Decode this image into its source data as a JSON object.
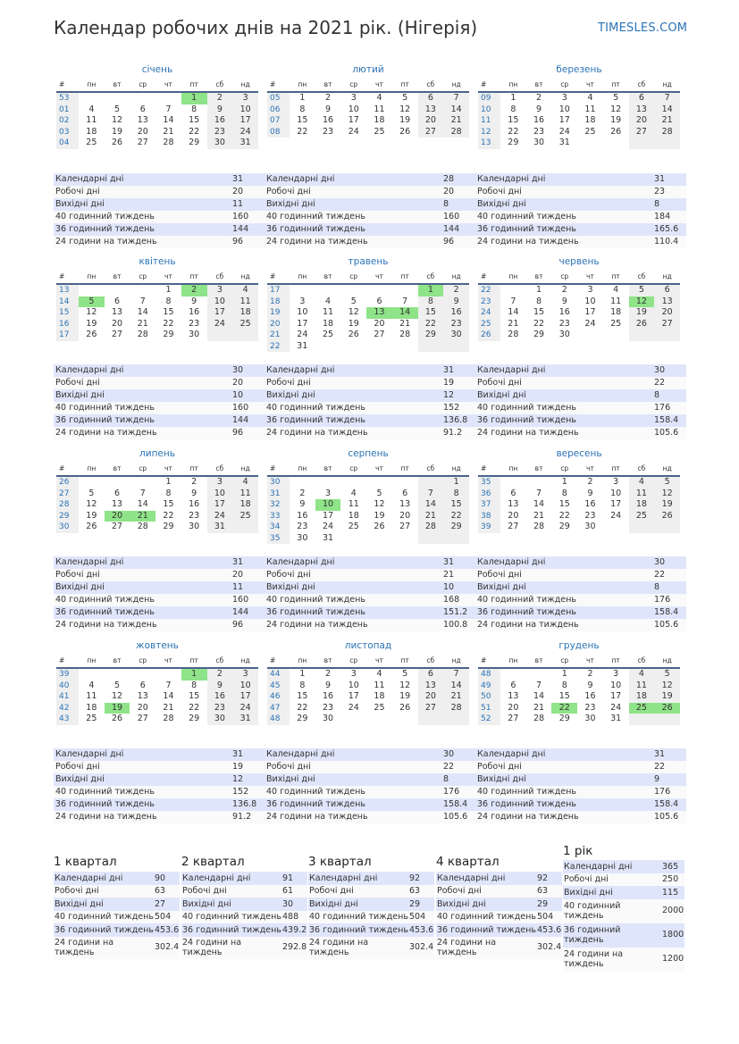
{
  "title": "Календар робочих днів на 2021 рік. (Нігерія)",
  "site": "TIMESLES.COM",
  "weekday_header": [
    "#",
    "пн",
    "вт",
    "ср",
    "чт",
    "пт",
    "сб",
    "нд"
  ],
  "stat_labels": [
    "Календарні дні",
    "Робочі дні",
    "Вихідні дні",
    "40 годинний тиждень",
    "36 годинний тиждень",
    "24 години на тиждень"
  ],
  "colors": {
    "accent": "#2b73b6",
    "holiday": "#8fe388",
    "weekend": "#efefef",
    "stripe": "#dfe6fb",
    "rule": "#4a6389"
  },
  "months": [
    {
      "name": "січень",
      "rows": [
        [
          "53",
          "",
          "",
          "",
          "",
          "1",
          "2",
          "3"
        ],
        [
          "01",
          "4",
          "5",
          "6",
          "7",
          "8",
          "9",
          "10"
        ],
        [
          "02",
          "11",
          "12",
          "13",
          "14",
          "15",
          "16",
          "17"
        ],
        [
          "03",
          "18",
          "19",
          "20",
          "21",
          "22",
          "23",
          "24"
        ],
        [
          "04",
          "25",
          "26",
          "27",
          "28",
          "29",
          "30",
          "31"
        ]
      ],
      "holidays": [
        "1"
      ],
      "stats": [
        "31",
        "20",
        "11",
        "160",
        "144",
        "96"
      ]
    },
    {
      "name": "лютий",
      "rows": [
        [
          "05",
          "1",
          "2",
          "3",
          "4",
          "5",
          "6",
          "7"
        ],
        [
          "06",
          "8",
          "9",
          "10",
          "11",
          "12",
          "13",
          "14"
        ],
        [
          "07",
          "15",
          "16",
          "17",
          "18",
          "19",
          "20",
          "21"
        ],
        [
          "08",
          "22",
          "23",
          "24",
          "25",
          "26",
          "27",
          "28"
        ]
      ],
      "holidays": [],
      "stats": [
        "28",
        "20",
        "8",
        "160",
        "144",
        "96"
      ]
    },
    {
      "name": "березень",
      "rows": [
        [
          "09",
          "1",
          "2",
          "3",
          "4",
          "5",
          "6",
          "7"
        ],
        [
          "10",
          "8",
          "9",
          "10",
          "11",
          "12",
          "13",
          "14"
        ],
        [
          "11",
          "15",
          "16",
          "17",
          "18",
          "19",
          "20",
          "21"
        ],
        [
          "12",
          "22",
          "23",
          "24",
          "25",
          "26",
          "27",
          "28"
        ],
        [
          "13",
          "29",
          "30",
          "31",
          "",
          "",
          "",
          ""
        ]
      ],
      "holidays": [],
      "stats": [
        "31",
        "23",
        "8",
        "184",
        "165.6",
        "110.4"
      ]
    },
    {
      "name": "квітень",
      "rows": [
        [
          "13",
          "",
          "",
          "",
          "1",
          "2",
          "3",
          "4"
        ],
        [
          "14",
          "5",
          "6",
          "7",
          "8",
          "9",
          "10",
          "11"
        ],
        [
          "15",
          "12",
          "13",
          "14",
          "15",
          "16",
          "17",
          "18"
        ],
        [
          "16",
          "19",
          "20",
          "21",
          "22",
          "23",
          "24",
          "25"
        ],
        [
          "17",
          "26",
          "27",
          "28",
          "29",
          "30",
          "",
          ""
        ]
      ],
      "holidays": [
        "2",
        "5"
      ],
      "stats": [
        "30",
        "20",
        "10",
        "160",
        "144",
        "96"
      ]
    },
    {
      "name": "травень",
      "rows": [
        [
          "17",
          "",
          "",
          "",
          "",
          "",
          "1",
          "2"
        ],
        [
          "18",
          "3",
          "4",
          "5",
          "6",
          "7",
          "8",
          "9"
        ],
        [
          "19",
          "10",
          "11",
          "12",
          "13",
          "14",
          "15",
          "16"
        ],
        [
          "20",
          "17",
          "18",
          "19",
          "20",
          "21",
          "22",
          "23"
        ],
        [
          "21",
          "24",
          "25",
          "26",
          "27",
          "28",
          "29",
          "30"
        ],
        [
          "22",
          "31",
          "",
          "",
          "",
          "",
          "",
          ""
        ]
      ],
      "holidays": [
        "1",
        "13",
        "14"
      ],
      "stats": [
        "31",
        "19",
        "12",
        "152",
        "136.8",
        "91.2"
      ]
    },
    {
      "name": "червень",
      "rows": [
        [
          "22",
          "",
          "1",
          "2",
          "3",
          "4",
          "5",
          "6"
        ],
        [
          "23",
          "7",
          "8",
          "9",
          "10",
          "11",
          "12",
          "13"
        ],
        [
          "24",
          "14",
          "15",
          "16",
          "17",
          "18",
          "19",
          "20"
        ],
        [
          "25",
          "21",
          "22",
          "23",
          "24",
          "25",
          "26",
          "27"
        ],
        [
          "26",
          "28",
          "29",
          "30",
          "",
          "",
          "",
          ""
        ]
      ],
      "holidays": [
        "12"
      ],
      "stats": [
        "30",
        "22",
        "8",
        "176",
        "158.4",
        "105.6"
      ]
    },
    {
      "name": "липень",
      "rows": [
        [
          "26",
          "",
          "",
          "",
          "1",
          "2",
          "3",
          "4"
        ],
        [
          "27",
          "5",
          "6",
          "7",
          "8",
          "9",
          "10",
          "11"
        ],
        [
          "28",
          "12",
          "13",
          "14",
          "15",
          "16",
          "17",
          "18"
        ],
        [
          "29",
          "19",
          "20",
          "21",
          "22",
          "23",
          "24",
          "25"
        ],
        [
          "30",
          "26",
          "27",
          "28",
          "29",
          "30",
          "31",
          ""
        ]
      ],
      "holidays": [
        "20",
        "21"
      ],
      "stats": [
        "31",
        "20",
        "11",
        "160",
        "144",
        "96"
      ]
    },
    {
      "name": "серпень",
      "rows": [
        [
          "30",
          "",
          "",
          "",
          "",
          "",
          "",
          "1"
        ],
        [
          "31",
          "2",
          "3",
          "4",
          "5",
          "6",
          "7",
          "8"
        ],
        [
          "32",
          "9",
          "10",
          "11",
          "12",
          "13",
          "14",
          "15"
        ],
        [
          "33",
          "16",
          "17",
          "18",
          "19",
          "20",
          "21",
          "22"
        ],
        [
          "34",
          "23",
          "24",
          "25",
          "26",
          "27",
          "28",
          "29"
        ],
        [
          "35",
          "30",
          "31",
          "",
          "",
          "",
          "",
          ""
        ]
      ],
      "holidays": [
        "10"
      ],
      "stats": [
        "31",
        "21",
        "10",
        "168",
        "151.2",
        "100.8"
      ]
    },
    {
      "name": "вересень",
      "rows": [
        [
          "35",
          "",
          "",
          "1",
          "2",
          "3",
          "4",
          "5"
        ],
        [
          "36",
          "6",
          "7",
          "8",
          "9",
          "10",
          "11",
          "12"
        ],
        [
          "37",
          "13",
          "14",
          "15",
          "16",
          "17",
          "18",
          "19"
        ],
        [
          "38",
          "20",
          "21",
          "22",
          "23",
          "24",
          "25",
          "26"
        ],
        [
          "39",
          "27",
          "28",
          "29",
          "30",
          "",
          "",
          ""
        ]
      ],
      "holidays": [],
      "stats": [
        "30",
        "22",
        "8",
        "176",
        "158.4",
        "105.6"
      ]
    },
    {
      "name": "жовтень",
      "rows": [
        [
          "39",
          "",
          "",
          "",
          "",
          "1",
          "2",
          "3"
        ],
        [
          "40",
          "4",
          "5",
          "6",
          "7",
          "8",
          "9",
          "10"
        ],
        [
          "41",
          "11",
          "12",
          "13",
          "14",
          "15",
          "16",
          "17"
        ],
        [
          "42",
          "18",
          "19",
          "20",
          "21",
          "22",
          "23",
          "24"
        ],
        [
          "43",
          "25",
          "26",
          "27",
          "28",
          "29",
          "30",
          "31"
        ]
      ],
      "holidays": [
        "1",
        "19"
      ],
      "stats": [
        "31",
        "19",
        "12",
        "152",
        "136.8",
        "91.2"
      ]
    },
    {
      "name": "листопад",
      "rows": [
        [
          "44",
          "1",
          "2",
          "3",
          "4",
          "5",
          "6",
          "7"
        ],
        [
          "45",
          "8",
          "9",
          "10",
          "11",
          "12",
          "13",
          "14"
        ],
        [
          "46",
          "15",
          "16",
          "17",
          "18",
          "19",
          "20",
          "21"
        ],
        [
          "47",
          "22",
          "23",
          "24",
          "25",
          "26",
          "27",
          "28"
        ],
        [
          "48",
          "29",
          "30",
          "",
          "",
          "",
          "",
          ""
        ]
      ],
      "holidays": [],
      "stats": [
        "30",
        "22",
        "8",
        "176",
        "158.4",
        "105.6"
      ]
    },
    {
      "name": "грудень",
      "rows": [
        [
          "48",
          "",
          "",
          "1",
          "2",
          "3",
          "4",
          "5"
        ],
        [
          "49",
          "6",
          "7",
          "8",
          "9",
          "10",
          "11",
          "12"
        ],
        [
          "50",
          "13",
          "14",
          "15",
          "16",
          "17",
          "18",
          "19"
        ],
        [
          "51",
          "20",
          "21",
          "22",
          "23",
          "24",
          "25",
          "26"
        ],
        [
          "52",
          "27",
          "28",
          "29",
          "30",
          "31",
          "",
          ""
        ]
      ],
      "holidays": [
        "22",
        "25",
        "26"
      ],
      "stats": [
        "31",
        "22",
        "9",
        "176",
        "158.4",
        "105.6"
      ]
    }
  ],
  "quarters": [
    {
      "title": "1 квартал",
      "stats": [
        "90",
        "63",
        "27",
        "504",
        "453.6",
        "302.4"
      ]
    },
    {
      "title": "2 квартал",
      "stats": [
        "91",
        "61",
        "30",
        "488",
        "439.2",
        "292.8"
      ]
    },
    {
      "title": "3 квартал",
      "stats": [
        "92",
        "63",
        "29",
        "504",
        "453.6",
        "302.4"
      ]
    },
    {
      "title": "4 квартал",
      "stats": [
        "92",
        "63",
        "29",
        "504",
        "453.6",
        "302.4"
      ]
    }
  ],
  "year": {
    "title": "1 рік",
    "stats": [
      "365",
      "250",
      "115",
      "2000",
      "1800",
      "1200"
    ]
  }
}
